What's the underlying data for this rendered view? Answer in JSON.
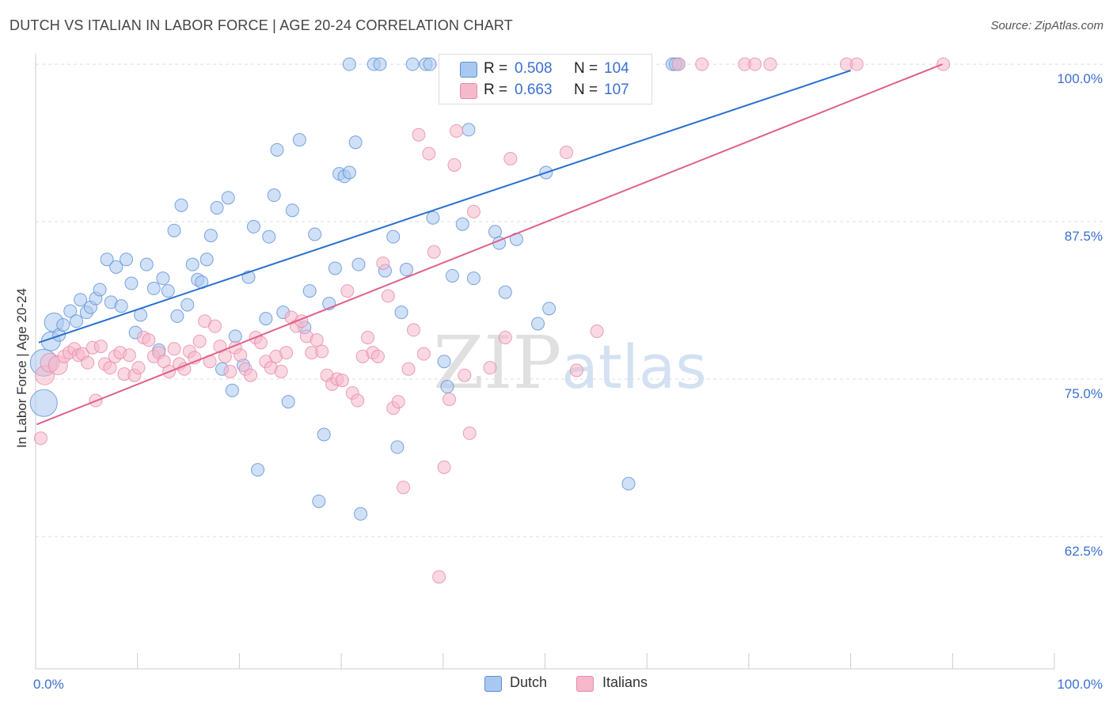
{
  "chart_data": {
    "type": "scatter",
    "title": "DUTCH VS ITALIAN IN LABOR FORCE | AGE 20-24 CORRELATION CHART",
    "source": "Source: ZipAtlas.com",
    "xlabel": "",
    "ylabel": "In Labor Force | Age 20-24",
    "xlim": [
      0,
      100
    ],
    "ylim": [
      52,
      100.7
    ],
    "x_tick_labels": [
      "0.0%",
      "100.0%"
    ],
    "y_ticks": [
      62.5,
      75.0,
      87.5,
      100.0
    ],
    "y_tick_labels": [
      "62.5%",
      "75.0%",
      "87.5%",
      "100.0%"
    ],
    "grid": true,
    "watermark": "ZIPatlas",
    "legend": {
      "series": [
        {
          "name": "Dutch",
          "R_label": "R =",
          "R": "0.508",
          "N_label": "N =",
          "N": "104"
        },
        {
          "name": "Italians",
          "R_label": "R =",
          "R": "0.663",
          "N_label": "N =",
          "N": "107"
        }
      ]
    },
    "colors": {
      "dutch_fill": "#a9c8f0",
      "dutch_stroke": "#5b8fd6",
      "dutch_line": "#2a6fd0",
      "italians_fill": "#f6b8cb",
      "italians_stroke": "#e68aa7",
      "italians_line": "#e0608a",
      "value_text": "#3a6fd0",
      "axis_label": "#3a6fd0",
      "grid": "#dddddd"
    },
    "series": [
      {
        "name": "Dutch",
        "trend": [
          [
            0.3,
            77.9
          ],
          [
            80,
            99.5
          ]
        ],
        "points": [
          {
            "x": 0.8,
            "y": 73.1,
            "s": 3
          },
          {
            "x": 0.8,
            "y": 76.3,
            "s": 3
          },
          {
            "x": 1.5,
            "y": 78.0,
            "s": 2
          },
          {
            "x": 1.8,
            "y": 79.5,
            "s": 2
          },
          {
            "x": 2.3,
            "y": 78.5,
            "s": 1
          },
          {
            "x": 3.4,
            "y": 80.4,
            "s": 1
          },
          {
            "x": 2.7,
            "y": 79.3,
            "s": 1
          },
          {
            "x": 4.0,
            "y": 79.6,
            "s": 1
          },
          {
            "x": 4.4,
            "y": 81.3,
            "s": 1
          },
          {
            "x": 5.0,
            "y": 80.3,
            "s": 1
          },
          {
            "x": 5.4,
            "y": 80.7,
            "s": 1
          },
          {
            "x": 5.9,
            "y": 81.4,
            "s": 1
          },
          {
            "x": 6.3,
            "y": 82.1,
            "s": 1
          },
          {
            "x": 7.0,
            "y": 84.5,
            "s": 1
          },
          {
            "x": 7.4,
            "y": 81.1,
            "s": 1
          },
          {
            "x": 7.9,
            "y": 83.9,
            "s": 1
          },
          {
            "x": 8.4,
            "y": 80.8,
            "s": 1
          },
          {
            "x": 8.9,
            "y": 84.5,
            "s": 1
          },
          {
            "x": 9.4,
            "y": 82.6,
            "s": 1
          },
          {
            "x": 9.8,
            "y": 78.7,
            "s": 1
          },
          {
            "x": 10.3,
            "y": 80.1,
            "s": 1
          },
          {
            "x": 10.9,
            "y": 84.1,
            "s": 1
          },
          {
            "x": 11.6,
            "y": 82.2,
            "s": 1
          },
          {
            "x": 12.1,
            "y": 77.3,
            "s": 1
          },
          {
            "x": 12.5,
            "y": 83.0,
            "s": 1
          },
          {
            "x": 13.0,
            "y": 82.0,
            "s": 1
          },
          {
            "x": 13.6,
            "y": 86.8,
            "s": 1
          },
          {
            "x": 13.9,
            "y": 80.0,
            "s": 1
          },
          {
            "x": 14.3,
            "y": 88.8,
            "s": 1
          },
          {
            "x": 14.9,
            "y": 80.9,
            "s": 1
          },
          {
            "x": 15.4,
            "y": 84.1,
            "s": 1
          },
          {
            "x": 15.9,
            "y": 82.9,
            "s": 1
          },
          {
            "x": 16.3,
            "y": 82.7,
            "s": 1
          },
          {
            "x": 16.8,
            "y": 84.5,
            "s": 1
          },
          {
            "x": 17.2,
            "y": 86.4,
            "s": 1
          },
          {
            "x": 17.8,
            "y": 88.6,
            "s": 1
          },
          {
            "x": 18.3,
            "y": 75.8,
            "s": 1
          },
          {
            "x": 18.9,
            "y": 89.4,
            "s": 1
          },
          {
            "x": 19.3,
            "y": 74.1,
            "s": 1
          },
          {
            "x": 19.6,
            "y": 78.4,
            "s": 1
          },
          {
            "x": 20.4,
            "y": 76.1,
            "s": 1
          },
          {
            "x": 20.9,
            "y": 83.1,
            "s": 1
          },
          {
            "x": 21.4,
            "y": 87.1,
            "s": 1
          },
          {
            "x": 21.8,
            "y": 67.8,
            "s": 1
          },
          {
            "x": 22.6,
            "y": 79.8,
            "s": 1
          },
          {
            "x": 22.9,
            "y": 86.3,
            "s": 1
          },
          {
            "x": 23.4,
            "y": 89.6,
            "s": 1
          },
          {
            "x": 23.7,
            "y": 93.2,
            "s": 1
          },
          {
            "x": 24.3,
            "y": 80.3,
            "s": 1
          },
          {
            "x": 24.8,
            "y": 73.2,
            "s": 1
          },
          {
            "x": 25.2,
            "y": 88.4,
            "s": 1
          },
          {
            "x": 25.9,
            "y": 94.0,
            "s": 1
          },
          {
            "x": 26.4,
            "y": 79.1,
            "s": 1
          },
          {
            "x": 26.9,
            "y": 82.0,
            "s": 1
          },
          {
            "x": 27.4,
            "y": 86.5,
            "s": 1
          },
          {
            "x": 27.8,
            "y": 65.3,
            "s": 1
          },
          {
            "x": 28.3,
            "y": 70.6,
            "s": 1
          },
          {
            "x": 28.8,
            "y": 81.0,
            "s": 1
          },
          {
            "x": 29.4,
            "y": 83.8,
            "s": 1
          },
          {
            "x": 29.8,
            "y": 91.3,
            "s": 1
          },
          {
            "x": 30.3,
            "y": 91.1,
            "s": 1
          },
          {
            "x": 30.8,
            "y": 91.4,
            "s": 1
          },
          {
            "x": 31.4,
            "y": 93.8,
            "s": 1
          },
          {
            "x": 31.7,
            "y": 84.1,
            "s": 1
          },
          {
            "x": 31.9,
            "y": 64.3,
            "s": 1
          },
          {
            "x": 30.8,
            "y": 100.0,
            "s": 1
          },
          {
            "x": 33.2,
            "y": 100.0,
            "s": 1
          },
          {
            "x": 33.8,
            "y": 100.0,
            "s": 1
          },
          {
            "x": 34.3,
            "y": 83.6,
            "s": 1
          },
          {
            "x": 35.1,
            "y": 86.3,
            "s": 1
          },
          {
            "x": 35.5,
            "y": 69.6,
            "s": 1
          },
          {
            "x": 35.9,
            "y": 80.3,
            "s": 1
          },
          {
            "x": 36.4,
            "y": 83.7,
            "s": 1
          },
          {
            "x": 37.0,
            "y": 100.0,
            "s": 1
          },
          {
            "x": 38.3,
            "y": 100.0,
            "s": 1
          },
          {
            "x": 38.7,
            "y": 100.0,
            "s": 1
          },
          {
            "x": 39.0,
            "y": 87.8,
            "s": 1
          },
          {
            "x": 40.1,
            "y": 76.4,
            "s": 1
          },
          {
            "x": 40.4,
            "y": 74.4,
            "s": 1
          },
          {
            "x": 40.9,
            "y": 83.2,
            "s": 1
          },
          {
            "x": 41.4,
            "y": 100.0,
            "s": 1
          },
          {
            "x": 41.9,
            "y": 87.3,
            "s": 1
          },
          {
            "x": 42.5,
            "y": 94.8,
            "s": 1
          },
          {
            "x": 43.4,
            "y": 100.0,
            "s": 1
          },
          {
            "x": 43.0,
            "y": 83.0,
            "s": 1
          },
          {
            "x": 44.5,
            "y": 100.0,
            "s": 1
          },
          {
            "x": 45.1,
            "y": 86.7,
            "s": 1
          },
          {
            "x": 45.5,
            "y": 85.8,
            "s": 1
          },
          {
            "x": 46.1,
            "y": 100.0,
            "s": 1
          },
          {
            "x": 46.5,
            "y": 100.0,
            "s": 1
          },
          {
            "x": 46.1,
            "y": 81.9,
            "s": 1
          },
          {
            "x": 47.2,
            "y": 86.1,
            "s": 1
          },
          {
            "x": 48.0,
            "y": 100.0,
            "s": 1
          },
          {
            "x": 49.3,
            "y": 79.4,
            "s": 1
          },
          {
            "x": 50.1,
            "y": 91.4,
            "s": 1
          },
          {
            "x": 50.4,
            "y": 80.6,
            "s": 1
          },
          {
            "x": 53.5,
            "y": 100.0,
            "s": 1
          },
          {
            "x": 58.2,
            "y": 66.7,
            "s": 1
          },
          {
            "x": 59.2,
            "y": 100.0,
            "s": 1
          },
          {
            "x": 62.5,
            "y": 100.0,
            "s": 1
          },
          {
            "x": 63.1,
            "y": 100.0,
            "s": 1
          },
          {
            "x": 62.8,
            "y": 100.0,
            "s": 1
          }
        ]
      },
      {
        "name": "Italians",
        "trend": [
          [
            0.1,
            71.4
          ],
          [
            89,
            100.0
          ]
        ],
        "points": [
          {
            "x": 0.5,
            "y": 70.3,
            "s": 1
          },
          {
            "x": 0.9,
            "y": 75.3,
            "s": 2
          },
          {
            "x": 1.4,
            "y": 76.3,
            "s": 2
          },
          {
            "x": 2.2,
            "y": 76.1,
            "s": 2
          },
          {
            "x": 2.8,
            "y": 76.8,
            "s": 1
          },
          {
            "x": 3.3,
            "y": 77.1,
            "s": 1
          },
          {
            "x": 3.8,
            "y": 77.4,
            "s": 1
          },
          {
            "x": 4.2,
            "y": 76.9,
            "s": 1
          },
          {
            "x": 4.6,
            "y": 77.0,
            "s": 1
          },
          {
            "x": 5.1,
            "y": 76.3,
            "s": 1
          },
          {
            "x": 5.6,
            "y": 77.5,
            "s": 1
          },
          {
            "x": 5.9,
            "y": 73.3,
            "s": 1
          },
          {
            "x": 6.4,
            "y": 77.6,
            "s": 1
          },
          {
            "x": 6.8,
            "y": 76.2,
            "s": 1
          },
          {
            "x": 7.3,
            "y": 75.9,
            "s": 1
          },
          {
            "x": 7.8,
            "y": 76.8,
            "s": 1
          },
          {
            "x": 8.3,
            "y": 77.1,
            "s": 1
          },
          {
            "x": 8.7,
            "y": 75.4,
            "s": 1
          },
          {
            "x": 9.2,
            "y": 76.9,
            "s": 1
          },
          {
            "x": 9.7,
            "y": 75.3,
            "s": 1
          },
          {
            "x": 10.1,
            "y": 75.9,
            "s": 1
          },
          {
            "x": 10.6,
            "y": 78.3,
            "s": 1
          },
          {
            "x": 11.1,
            "y": 78.1,
            "s": 1
          },
          {
            "x": 11.6,
            "y": 76.8,
            "s": 1
          },
          {
            "x": 12.1,
            "y": 77.1,
            "s": 1
          },
          {
            "x": 12.6,
            "y": 76.4,
            "s": 1
          },
          {
            "x": 13.1,
            "y": 75.6,
            "s": 1
          },
          {
            "x": 13.6,
            "y": 77.4,
            "s": 1
          },
          {
            "x": 14.1,
            "y": 76.2,
            "s": 1
          },
          {
            "x": 14.6,
            "y": 75.8,
            "s": 1
          },
          {
            "x": 15.1,
            "y": 77.2,
            "s": 1
          },
          {
            "x": 15.6,
            "y": 76.7,
            "s": 1
          },
          {
            "x": 16.1,
            "y": 78.0,
            "s": 1
          },
          {
            "x": 16.6,
            "y": 79.6,
            "s": 1
          },
          {
            "x": 17.1,
            "y": 76.4,
            "s": 1
          },
          {
            "x": 17.6,
            "y": 79.2,
            "s": 1
          },
          {
            "x": 18.1,
            "y": 77.6,
            "s": 1
          },
          {
            "x": 18.6,
            "y": 76.8,
            "s": 1
          },
          {
            "x": 19.1,
            "y": 75.6,
            "s": 1
          },
          {
            "x": 19.6,
            "y": 77.5,
            "s": 1
          },
          {
            "x": 20.1,
            "y": 76.9,
            "s": 1
          },
          {
            "x": 20.6,
            "y": 75.8,
            "s": 1
          },
          {
            "x": 21.1,
            "y": 75.3,
            "s": 1
          },
          {
            "x": 21.6,
            "y": 78.3,
            "s": 1
          },
          {
            "x": 22.1,
            "y": 77.9,
            "s": 1
          },
          {
            "x": 22.6,
            "y": 76.4,
            "s": 1
          },
          {
            "x": 23.1,
            "y": 75.9,
            "s": 1
          },
          {
            "x": 23.6,
            "y": 76.8,
            "s": 1
          },
          {
            "x": 24.1,
            "y": 75.6,
            "s": 1
          },
          {
            "x": 24.6,
            "y": 77.1,
            "s": 1
          },
          {
            "x": 25.1,
            "y": 79.9,
            "s": 1
          },
          {
            "x": 25.6,
            "y": 79.2,
            "s": 1
          },
          {
            "x": 26.1,
            "y": 79.6,
            "s": 1
          },
          {
            "x": 26.6,
            "y": 78.4,
            "s": 1
          },
          {
            "x": 27.1,
            "y": 77.1,
            "s": 1
          },
          {
            "x": 27.6,
            "y": 78.1,
            "s": 1
          },
          {
            "x": 28.1,
            "y": 77.2,
            "s": 1
          },
          {
            "x": 28.6,
            "y": 75.3,
            "s": 1
          },
          {
            "x": 29.1,
            "y": 74.6,
            "s": 1
          },
          {
            "x": 29.6,
            "y": 75.0,
            "s": 1
          },
          {
            "x": 30.1,
            "y": 74.9,
            "s": 1
          },
          {
            "x": 30.6,
            "y": 82.0,
            "s": 1
          },
          {
            "x": 31.1,
            "y": 73.9,
            "s": 1
          },
          {
            "x": 31.6,
            "y": 73.3,
            "s": 1
          },
          {
            "x": 32.1,
            "y": 76.8,
            "s": 1
          },
          {
            "x": 32.6,
            "y": 78.3,
            "s": 1
          },
          {
            "x": 33.1,
            "y": 77.1,
            "s": 1
          },
          {
            "x": 33.6,
            "y": 76.8,
            "s": 1
          },
          {
            "x": 34.1,
            "y": 84.2,
            "s": 1
          },
          {
            "x": 34.6,
            "y": 81.6,
            "s": 1
          },
          {
            "x": 35.1,
            "y": 72.7,
            "s": 1
          },
          {
            "x": 35.6,
            "y": 73.2,
            "s": 1
          },
          {
            "x": 36.1,
            "y": 66.4,
            "s": 1
          },
          {
            "x": 36.6,
            "y": 75.8,
            "s": 1
          },
          {
            "x": 37.1,
            "y": 78.9,
            "s": 1
          },
          {
            "x": 37.6,
            "y": 94.4,
            "s": 1
          },
          {
            "x": 38.1,
            "y": 77.0,
            "s": 1
          },
          {
            "x": 38.6,
            "y": 92.9,
            "s": 1
          },
          {
            "x": 39.1,
            "y": 85.1,
            "s": 1
          },
          {
            "x": 39.6,
            "y": 59.3,
            "s": 1
          },
          {
            "x": 40.1,
            "y": 68.0,
            "s": 1
          },
          {
            "x": 40.6,
            "y": 73.4,
            "s": 1
          },
          {
            "x": 41.1,
            "y": 92.0,
            "s": 1
          },
          {
            "x": 41.3,
            "y": 94.7,
            "s": 1
          },
          {
            "x": 42.1,
            "y": 75.3,
            "s": 1
          },
          {
            "x": 42.6,
            "y": 70.7,
            "s": 1
          },
          {
            "x": 43.0,
            "y": 88.3,
            "s": 1
          },
          {
            "x": 44.6,
            "y": 75.9,
            "s": 1
          },
          {
            "x": 46.1,
            "y": 78.3,
            "s": 1
          },
          {
            "x": 46.6,
            "y": 92.5,
            "s": 1
          },
          {
            "x": 52.1,
            "y": 93.0,
            "s": 1
          },
          {
            "x": 53.1,
            "y": 75.7,
            "s": 1
          },
          {
            "x": 55.1,
            "y": 78.8,
            "s": 1
          },
          {
            "x": 63.1,
            "y": 100.0,
            "s": 1
          },
          {
            "x": 65.4,
            "y": 100.0,
            "s": 1
          },
          {
            "x": 69.6,
            "y": 100.0,
            "s": 1
          },
          {
            "x": 70.6,
            "y": 100.0,
            "s": 1
          },
          {
            "x": 72.1,
            "y": 100.0,
            "s": 1
          },
          {
            "x": 79.6,
            "y": 100.0,
            "s": 1
          },
          {
            "x": 80.6,
            "y": 100.0,
            "s": 1
          },
          {
            "x": 89.1,
            "y": 100.0,
            "s": 1
          }
        ]
      }
    ]
  }
}
